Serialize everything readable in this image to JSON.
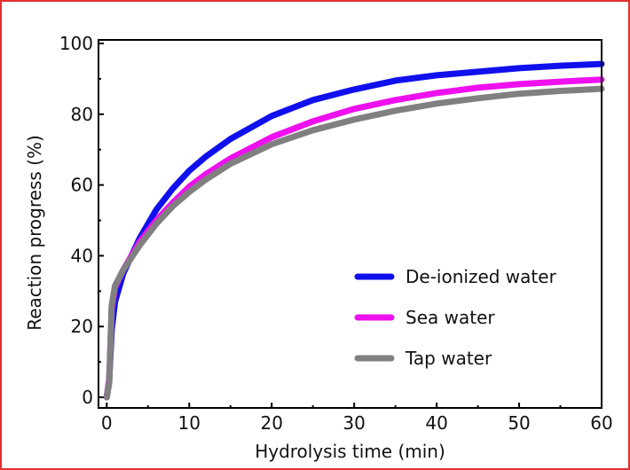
{
  "chart_data": {
    "type": "line",
    "title": "",
    "xlabel": "Hydrolysis time (min)",
    "ylabel": "Reaction progress (%)",
    "xlim": [
      -1,
      60
    ],
    "ylim": [
      -3,
      101
    ],
    "xticks": [
      0,
      10,
      20,
      30,
      40,
      50,
      60
    ],
    "yticks": [
      0,
      20,
      40,
      60,
      80,
      100
    ],
    "legend_position": "lower-right",
    "grid": false,
    "series": [
      {
        "name": "De-ionized water",
        "color": "#1010ee",
        "x": [
          0,
          0.3,
          0.6,
          1,
          2,
          3,
          4,
          5,
          6,
          8,
          10,
          12,
          15,
          20,
          25,
          30,
          35,
          40,
          45,
          50,
          55,
          60
        ],
        "y": [
          0,
          5,
          19,
          27,
          35,
          40,
          45,
          49,
          53,
          59,
          64,
          68,
          73,
          79.5,
          84,
          87,
          89.5,
          91,
          92,
          93,
          93.7,
          94.2
        ]
      },
      {
        "name": "Sea water",
        "color": "#ee10ee",
        "x": [
          0,
          0.3,
          0.6,
          1,
          2,
          3,
          4,
          5,
          6,
          8,
          10,
          12,
          15,
          20,
          25,
          30,
          35,
          40,
          45,
          50,
          55,
          60
        ],
        "y": [
          0,
          5,
          25,
          31,
          36,
          40,
          44,
          47,
          50,
          55,
          59.5,
          63,
          67.5,
          73.5,
          78,
          81.5,
          84,
          86,
          87.5,
          88.5,
          89.2,
          89.8
        ]
      },
      {
        "name": "Tap water",
        "color": "#808080",
        "x": [
          0,
          0.3,
          0.6,
          1,
          2,
          3,
          4,
          5,
          6,
          8,
          10,
          12,
          15,
          20,
          25,
          30,
          35,
          40,
          45,
          50,
          55,
          60
        ],
        "y": [
          0,
          4,
          26,
          31.5,
          36,
          39.5,
          43,
          46,
          49,
          54,
          58,
          61.5,
          66,
          71.5,
          75.5,
          78.5,
          81,
          83,
          84.5,
          85.8,
          86.6,
          87.2
        ]
      }
    ]
  }
}
